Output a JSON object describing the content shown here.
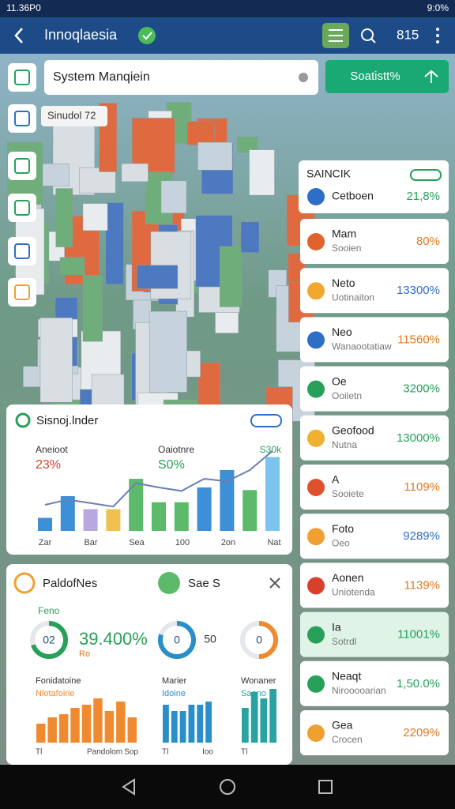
{
  "status_bar": {
    "time": "11.36P0",
    "battery": "9:0%"
  },
  "app_bar": {
    "title": "Innoqlaesia",
    "count": "815"
  },
  "search": {
    "placeholder": "System Manqiein",
    "button": "Soatistt%"
  },
  "tooltip": "Sinudol 72",
  "list": {
    "title": "SAINCIK",
    "items": [
      {
        "title": "Cetboen",
        "value": "21,8%",
        "color": "#2d6fc7",
        "value_color": "#27a05a"
      },
      {
        "title": "Mam",
        "subtitle": "Sooien",
        "value": "80%",
        "color": "#e0622c",
        "value_color": "#e07a20"
      },
      {
        "title": "Neto",
        "subtitle": "Uotinaiton",
        "value": "13300%",
        "color": "#f0a830",
        "value_color": "#2d6fc7"
      },
      {
        "title": "Neo",
        "subtitle": "Wanaootatiaw",
        "value": "11560%",
        "color": "#2d6fc7",
        "value_color": "#e07a20"
      },
      {
        "title": "Oe",
        "subtitle": "Ooiletn",
        "value": "3200%",
        "color": "#27a05a",
        "value_color": "#27a05a"
      },
      {
        "title": "Geofood",
        "subtitle": "Nutna",
        "value": "13000%",
        "color": "#f0b030",
        "value_color": "#27a05a"
      },
      {
        "title": "A",
        "subtitle": "Sooiete",
        "value": "1109%",
        "color": "#e0502c",
        "value_color": "#e07a20"
      },
      {
        "title": "Foto",
        "subtitle": "Oeo",
        "value": "9289%",
        "color": "#f0a030",
        "value_color": "#2d6fc7"
      },
      {
        "title": "Aonen",
        "subtitle": "Uniotenda",
        "value": "1139%",
        "color": "#d8402c",
        "value_color": "#e07a20"
      },
      {
        "title": "Ia",
        "subtitle": "Sotrdl",
        "value": "11001%",
        "color": "#27a05a",
        "value_color": "#27a05a"
      },
      {
        "title": "Neaqt",
        "subtitle": "Nirooooarian",
        "value": "1,50.0%",
        "color": "#27a05a",
        "value_color": "#27a05a"
      },
      {
        "title": "Gea",
        "subtitle": "Crocen",
        "value": "2209%",
        "color": "#f0a030",
        "value_color": "#e07a20"
      }
    ]
  },
  "chart": {
    "title": "Sisnoj.lnder",
    "stats": [
      {
        "label": "Aneioot",
        "value": "23%"
      },
      {
        "label": "Oaiotnre",
        "value": "S0%"
      },
      {
        "value": "S30k"
      }
    ],
    "x_labels": [
      "Zar",
      "Bar",
      "Sea",
      "100",
      "2on",
      "Nat"
    ],
    "bars": [
      15,
      40,
      25,
      25,
      60,
      33,
      33,
      50,
      70,
      47,
      85
    ],
    "bar_colors": [
      "#3d8fd8",
      "#3d8fd8",
      "#b9a8e0",
      "#f0c050",
      "#5cba6a",
      "#5cba6a",
      "#5cba6a",
      "#3d8fd8",
      "#3d8fd8",
      "#5cba6a",
      "#7cc4ee"
    ],
    "line": [
      30,
      36,
      32,
      28,
      55,
      50,
      46,
      60,
      57,
      70,
      92
    ]
  },
  "panel": {
    "title": "PaldofNes",
    "tab": "Sae S",
    "label": "Feno",
    "big_value": "39.400%",
    "sub": "Ro",
    "middle_value": "50",
    "donuts": [
      {
        "value": 70,
        "label": "02",
        "color": "#27a05a"
      },
      {
        "value": 80,
        "label": "0",
        "color": "#2a8fc7"
      },
      {
        "value": 50,
        "label": "0",
        "color": "#f08a30"
      }
    ],
    "bar_groups": [
      {
        "title": "Fonidatoine",
        "subtitle": "Nlotafoirie",
        "x_labels": [
          "Tl",
          "Pandolom",
          "Sop"
        ],
        "values": [
          30,
          40,
          45,
          55,
          60,
          70,
          50,
          65,
          40
        ],
        "color": "#f08a30"
      },
      {
        "title": "Marier",
        "subtitle": "Idoine",
        "x_labels": [
          "Tl",
          "Ioo"
        ],
        "values": [
          60,
          50,
          50,
          60,
          60,
          65
        ],
        "color": "#2a8fc7"
      },
      {
        "title": "Wonaner",
        "subtitle": "Saono",
        "x_labels": [
          "Tl"
        ],
        "values": [
          55,
          80,
          70,
          85
        ],
        "color": "#2aa3a0"
      }
    ]
  }
}
